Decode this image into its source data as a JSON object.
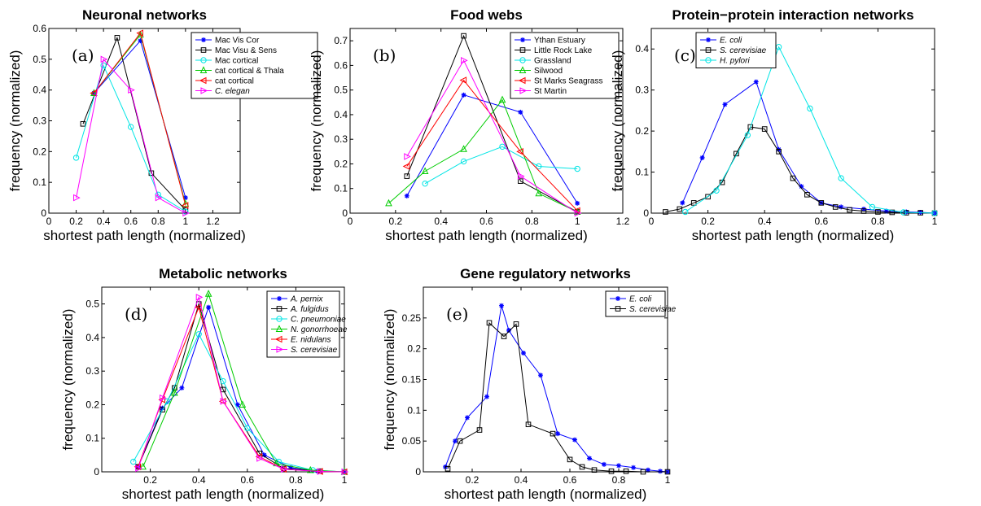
{
  "chart_data": [
    {
      "type": "line",
      "panel_letter": "(a)",
      "title": "Neuronal networks",
      "xlabel": "shortest path length (normalized)",
      "ylabel": "frequency (normalized)",
      "xlim": [
        0,
        1.4
      ],
      "ylim": [
        0,
        0.6
      ],
      "xticks": [
        0,
        0.2,
        0.4,
        0.6,
        0.8,
        1,
        1.2
      ],
      "xtick_labels": [
        "0",
        "0.2",
        "0.4",
        "0.6",
        "0.8",
        "1",
        "1.2"
      ],
      "yticks": [
        0,
        0.1,
        0.2,
        0.3,
        0.4,
        0.5,
        0.6
      ],
      "ytick_labels": [
        "0",
        "0.1",
        "0.2",
        "0.3",
        "0.4",
        "0.5",
        "0.6"
      ],
      "legend_position": "top-right",
      "grid": false,
      "series": [
        {
          "name": "Mac Vis Cor",
          "color": "#0000ff",
          "marker": "star",
          "italic": false,
          "x": [
            0.33,
            0.67,
            1.0
          ],
          "y": [
            0.39,
            0.56,
            0.05
          ]
        },
        {
          "name": "Mac Visu & Sens",
          "color": "#000000",
          "marker": "square",
          "italic": false,
          "x": [
            0.25,
            0.5,
            0.75,
            1.0
          ],
          "y": [
            0.29,
            0.57,
            0.13,
            0.01
          ]
        },
        {
          "name": "Mac cortical",
          "color": "#00e5e5",
          "marker": "circle",
          "italic": false,
          "x": [
            0.2,
            0.4,
            0.6,
            0.8,
            1.0
          ],
          "y": [
            0.18,
            0.48,
            0.28,
            0.06,
            0.005
          ]
        },
        {
          "name": "cat cortical & Thala",
          "color": "#00cc00",
          "marker": "triangle-up",
          "italic": false,
          "x": [
            0.33,
            0.67,
            1.0
          ],
          "y": [
            0.39,
            0.58,
            0.03
          ]
        },
        {
          "name": "cat cortical",
          "color": "#ff0000",
          "marker": "triangle-left",
          "italic": false,
          "x": [
            0.33,
            0.67,
            1.0
          ],
          "y": [
            0.39,
            0.585,
            0.025
          ]
        },
        {
          "name": "C. elegan",
          "color": "#ff00ff",
          "marker": "triangle-right",
          "italic": true,
          "x": [
            0.2,
            0.4,
            0.6,
            0.8,
            1.0
          ],
          "y": [
            0.05,
            0.5,
            0.4,
            0.05,
            0.0
          ]
        }
      ]
    },
    {
      "type": "line",
      "panel_letter": "(b)",
      "title": "Food webs",
      "xlabel": "shortest path length (normalized)",
      "ylabel": "frequency (normalized)",
      "xlim": [
        0,
        1.2
      ],
      "ylim": [
        0,
        0.75
      ],
      "xticks": [
        0,
        0.2,
        0.4,
        0.6,
        0.8,
        1,
        1.2
      ],
      "xtick_labels": [
        "0",
        "0.2",
        "0.4",
        "0.6",
        "0.8",
        "1",
        "1.2"
      ],
      "yticks": [
        0,
        0.1,
        0.2,
        0.3,
        0.4,
        0.5,
        0.6,
        0.7
      ],
      "ytick_labels": [
        "0",
        "0.1",
        "0.2",
        "0.3",
        "0.4",
        "0.5",
        "0.6",
        "0.7"
      ],
      "legend_position": "top-right",
      "grid": false,
      "series": [
        {
          "name": "Ythan Estuary",
          "color": "#0000ff",
          "marker": "star",
          "italic": false,
          "x": [
            0.25,
            0.5,
            0.75,
            1.0
          ],
          "y": [
            0.07,
            0.48,
            0.41,
            0.04
          ]
        },
        {
          "name": "Little Rock Lake",
          "color": "#000000",
          "marker": "square",
          "italic": false,
          "x": [
            0.25,
            0.5,
            0.75,
            1.0
          ],
          "y": [
            0.15,
            0.72,
            0.13,
            0.005
          ]
        },
        {
          "name": "Grassland",
          "color": "#00e5e5",
          "marker": "circle",
          "italic": false,
          "x": [
            0.33,
            0.5,
            0.67,
            0.83,
            1.0
          ],
          "y": [
            0.12,
            0.21,
            0.27,
            0.19,
            0.18
          ]
        },
        {
          "name": "Silwood",
          "color": "#00cc00",
          "marker": "triangle-up",
          "italic": false,
          "x": [
            0.17,
            0.33,
            0.5,
            0.67,
            0.83,
            1.0
          ],
          "y": [
            0.04,
            0.17,
            0.26,
            0.46,
            0.08,
            0.005
          ]
        },
        {
          "name": "St Marks Seagrass",
          "color": "#ff0000",
          "marker": "triangle-left",
          "italic": false,
          "x": [
            0.25,
            0.5,
            0.75,
            1.0
          ],
          "y": [
            0.19,
            0.54,
            0.25,
            0.01
          ]
        },
        {
          "name": "St Martin",
          "color": "#ff00ff",
          "marker": "triangle-right",
          "italic": false,
          "x": [
            0.25,
            0.5,
            0.75,
            1.0
          ],
          "y": [
            0.23,
            0.62,
            0.15,
            0.0
          ]
        }
      ]
    },
    {
      "type": "line",
      "panel_letter": "(c)",
      "title": "Protein−protein interaction networks",
      "xlabel": "shortest path length (normalized)",
      "ylabel": "frequency (normalized)",
      "xlim": [
        0,
        1
      ],
      "ylim": [
        0,
        0.45
      ],
      "xticks": [
        0,
        0.2,
        0.4,
        0.6,
        0.8,
        1
      ],
      "xtick_labels": [
        "0",
        "0.2",
        "0.4",
        "0.6",
        "0.8",
        "1"
      ],
      "yticks": [
        0,
        0.1,
        0.2,
        0.3,
        0.4
      ],
      "ytick_labels": [
        "0",
        "0.1",
        "0.2",
        "0.3",
        "0.4"
      ],
      "legend_position": "top-left",
      "grid": false,
      "series": [
        {
          "name": "E. coli",
          "color": "#0000ff",
          "marker": "star",
          "italic": true,
          "x": [
            0.11,
            0.18,
            0.26,
            0.37,
            0.45,
            0.53,
            0.6,
            0.67,
            0.75,
            0.83,
            0.9,
            0.95,
            1.0
          ],
          "y": [
            0.025,
            0.135,
            0.265,
            0.32,
            0.155,
            0.065,
            0.025,
            0.015,
            0.01,
            0.005,
            0.003,
            0.002,
            0.0
          ]
        },
        {
          "name": "S. cerevisiae",
          "color": "#000000",
          "marker": "square",
          "italic": true,
          "x": [
            0.05,
            0.1,
            0.15,
            0.2,
            0.25,
            0.3,
            0.35,
            0.4,
            0.45,
            0.5,
            0.55,
            0.6,
            0.65,
            0.7,
            0.75,
            0.8,
            0.85,
            0.9,
            0.95,
            1.0
          ],
          "y": [
            0.003,
            0.01,
            0.025,
            0.04,
            0.075,
            0.145,
            0.21,
            0.205,
            0.15,
            0.085,
            0.045,
            0.025,
            0.015,
            0.008,
            0.005,
            0.003,
            0.002,
            0.001,
            0.001,
            0.0
          ]
        },
        {
          "name": "H. pylori",
          "color": "#00e5e5",
          "marker": "circle",
          "italic": true,
          "x": [
            0.12,
            0.23,
            0.34,
            0.45,
            0.56,
            0.67,
            0.78,
            0.89,
            1.0
          ],
          "y": [
            0.003,
            0.055,
            0.19,
            0.405,
            0.255,
            0.085,
            0.015,
            0.002,
            0.0
          ]
        }
      ]
    },
    {
      "type": "line",
      "panel_letter": "(d)",
      "title": "Metabolic networks",
      "xlabel": "shortest path length (normalized)",
      "ylabel": "frequency (normalized)",
      "xlim": [
        0,
        1
      ],
      "ylim": [
        0,
        0.55
      ],
      "xticks": [
        0.2,
        0.4,
        0.6,
        0.8,
        1
      ],
      "xtick_labels": [
        "0.2",
        "0.4",
        "0.6",
        "0.8",
        "1"
      ],
      "yticks": [
        0,
        0.1,
        0.2,
        0.3,
        0.4,
        0.5
      ],
      "ytick_labels": [
        "0",
        "0.1",
        "0.2",
        "0.3",
        "0.4",
        "0.5"
      ],
      "legend_position": "top-right",
      "grid": false,
      "series": [
        {
          "name": "A. pernix",
          "color": "#0000ff",
          "marker": "star",
          "italic": true,
          "x": [
            0.15,
            0.25,
            0.33,
            0.44,
            0.56,
            0.67,
            0.78,
            0.89,
            1.0
          ],
          "y": [
            0.015,
            0.19,
            0.25,
            0.49,
            0.2,
            0.05,
            0.012,
            0.002,
            0.0
          ]
        },
        {
          "name": "A. fulgidus",
          "color": "#000000",
          "marker": "square",
          "italic": true,
          "x": [
            0.15,
            0.25,
            0.3,
            0.4,
            0.5,
            0.65,
            0.75,
            0.9,
            1.0
          ],
          "y": [
            0.015,
            0.185,
            0.25,
            0.5,
            0.245,
            0.055,
            0.01,
            0.002,
            0.0
          ]
        },
        {
          "name": "C. pneumoniae",
          "color": "#00e5e5",
          "marker": "circle",
          "italic": true,
          "x": [
            0.13,
            0.27,
            0.4,
            0.5,
            0.6,
            0.73,
            0.87,
            1.0
          ],
          "y": [
            0.03,
            0.21,
            0.41,
            0.27,
            0.13,
            0.03,
            0.005,
            0.0
          ]
        },
        {
          "name": "N. gonorrhoeae",
          "color": "#00cc00",
          "marker": "triangle-up",
          "italic": true,
          "x": [
            0.17,
            0.3,
            0.44,
            0.58,
            0.72,
            0.86,
            1.0
          ],
          "y": [
            0.015,
            0.235,
            0.53,
            0.2,
            0.025,
            0.005,
            0.0
          ]
        },
        {
          "name": "E. nidulans",
          "color": "#ff0000",
          "marker": "triangle-left",
          "italic": true,
          "x": [
            0.15,
            0.25,
            0.4,
            0.5,
            0.65,
            0.75,
            0.9,
            1.0
          ],
          "y": [
            0.015,
            0.215,
            0.49,
            0.21,
            0.045,
            0.008,
            0.001,
            0.0
          ]
        },
        {
          "name": "S. cerevisiae",
          "color": "#ff00ff",
          "marker": "triangle-right",
          "italic": true,
          "x": [
            0.15,
            0.25,
            0.4,
            0.5,
            0.65,
            0.75,
            0.9,
            1.0
          ],
          "y": [
            0.01,
            0.22,
            0.52,
            0.21,
            0.04,
            0.008,
            0.001,
            0.0
          ]
        }
      ]
    },
    {
      "type": "line",
      "panel_letter": "(e)",
      "title": "Gene regulatory networks",
      "xlabel": "shortest path length (normalized)",
      "ylabel": "frequency (normalized)",
      "xlim": [
        0,
        1
      ],
      "ylim": [
        0,
        0.3
      ],
      "xticks": [
        0.2,
        0.4,
        0.6,
        0.8,
        1
      ],
      "xtick_labels": [
        "0.2",
        "0.4",
        "0.6",
        "0.8",
        "1"
      ],
      "yticks": [
        0,
        0.05,
        0.1,
        0.15,
        0.2,
        0.25
      ],
      "ytick_labels": [
        "0",
        "0.05",
        "0.1",
        "0.15",
        "0.2",
        "0.25"
      ],
      "legend_position": "top-right",
      "grid": false,
      "series": [
        {
          "name": "E. coli",
          "color": "#0000ff",
          "marker": "star",
          "italic": true,
          "x": [
            0.09,
            0.13,
            0.18,
            0.26,
            0.32,
            0.35,
            0.41,
            0.48,
            0.55,
            0.62,
            0.68,
            0.74,
            0.8,
            0.86,
            0.92,
            0.97,
            1.0
          ],
          "y": [
            0.008,
            0.05,
            0.088,
            0.122,
            0.27,
            0.23,
            0.193,
            0.157,
            0.062,
            0.052,
            0.022,
            0.012,
            0.01,
            0.007,
            0.003,
            0.001,
            0.0
          ]
        },
        {
          "name": "S. cerevisiae",
          "color": "#000000",
          "marker": "square",
          "italic": true,
          "x": [
            0.1,
            0.15,
            0.23,
            0.27,
            0.33,
            0.38,
            0.43,
            0.53,
            0.6,
            0.65,
            0.7,
            0.77,
            0.83,
            0.9,
            1.0
          ],
          "y": [
            0.005,
            0.05,
            0.068,
            0.242,
            0.22,
            0.24,
            0.077,
            0.062,
            0.02,
            0.008,
            0.003,
            0.001,
            0.001,
            0.0,
            0.0
          ]
        }
      ]
    }
  ]
}
